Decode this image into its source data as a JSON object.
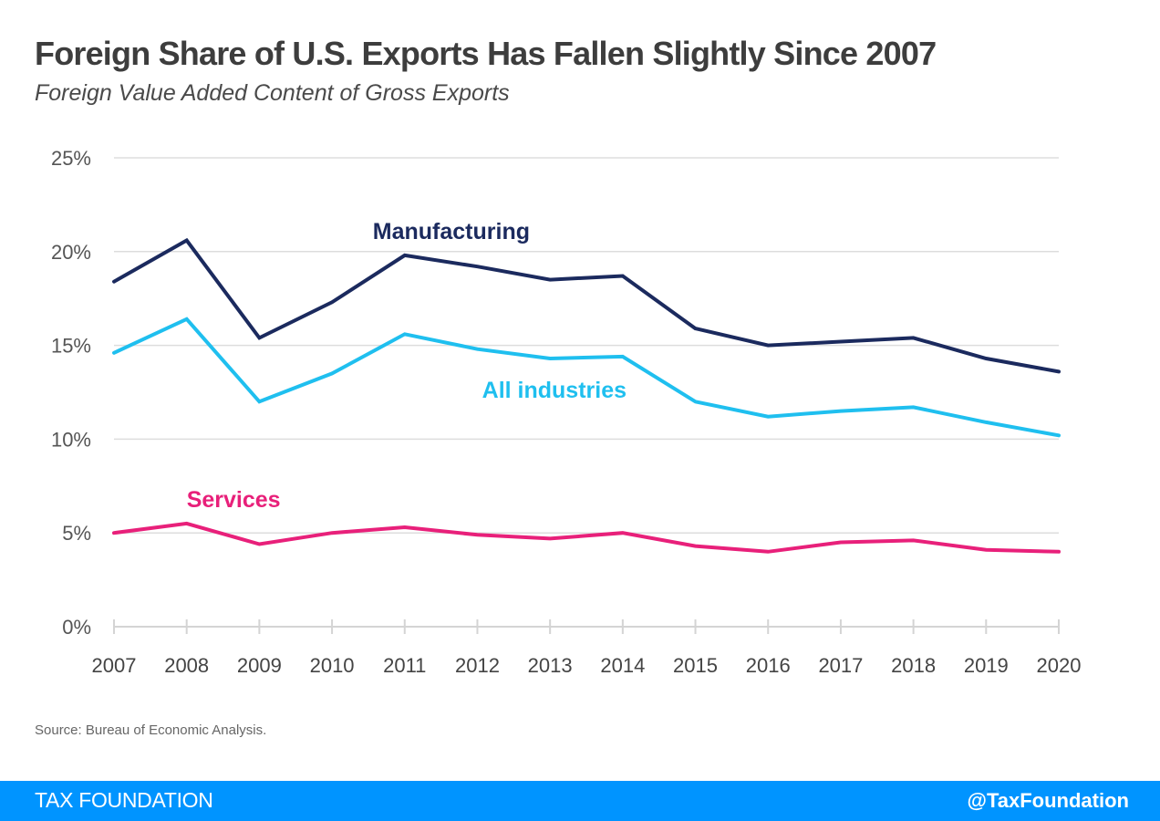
{
  "header": {
    "title": "Foreign Share of U.S. Exports Has Fallen Slightly Since 2007",
    "subtitle": "Foreign Value Added Content of Gross Exports"
  },
  "source": "Source: Bureau of Economic Analysis.",
  "footer": {
    "brand": "TAX FOUNDATION",
    "handle": "@TaxFoundation",
    "background_color": "#0094ff"
  },
  "chart_data": {
    "type": "line",
    "title": "Foreign Share of U.S. Exports Has Fallen Slightly Since 2007",
    "subtitle": "Foreign Value Added Content of Gross Exports",
    "xlabel": "",
    "ylabel": "",
    "x": [
      "2007",
      "2008",
      "2009",
      "2010",
      "2011",
      "2012",
      "2013",
      "2014",
      "2015",
      "2016",
      "2017",
      "2018",
      "2019",
      "2020"
    ],
    "ylim": [
      0,
      25
    ],
    "yticks": [
      0,
      5,
      10,
      15,
      20,
      25
    ],
    "ytick_labels": [
      "0%",
      "5%",
      "10%",
      "15%",
      "20%",
      "25%"
    ],
    "grid": true,
    "legend": "inline-labels",
    "series": [
      {
        "name": "Manufacturing",
        "color": "#1b2a5e",
        "label_anchor_year": "2011",
        "values": [
          18.4,
          20.6,
          15.4,
          17.3,
          19.8,
          19.2,
          18.5,
          18.7,
          15.9,
          15.0,
          15.2,
          15.4,
          14.3,
          13.6
        ]
      },
      {
        "name": "All industries",
        "color": "#1fbfef",
        "label_anchor_year": "2014",
        "values": [
          14.6,
          16.4,
          12.0,
          13.5,
          15.6,
          14.8,
          14.3,
          14.4,
          12.0,
          11.2,
          11.5,
          11.7,
          10.9,
          10.2
        ]
      },
      {
        "name": "Services",
        "color": "#e8207a",
        "label_anchor_year": "2008",
        "values": [
          5.0,
          5.5,
          4.4,
          5.0,
          5.3,
          4.9,
          4.7,
          5.0,
          4.3,
          4.0,
          4.5,
          4.6,
          4.1,
          4.0
        ]
      }
    ]
  }
}
